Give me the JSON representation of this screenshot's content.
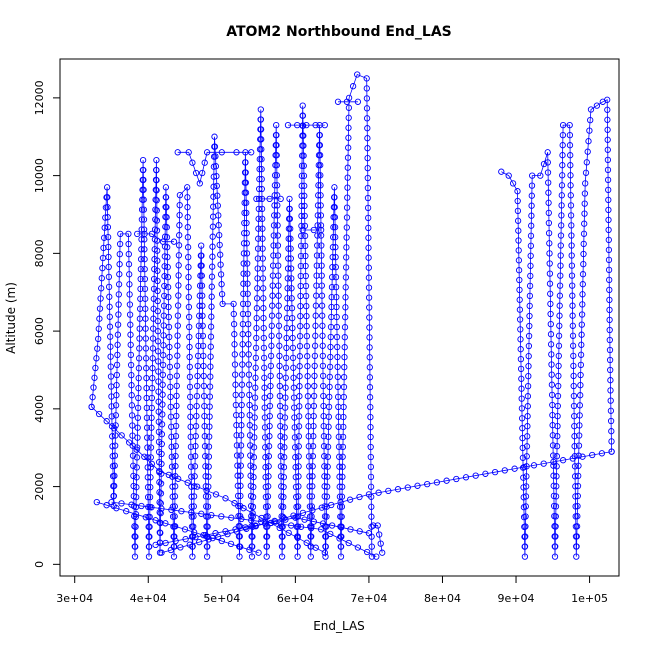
{
  "chart_data": {
    "type": "line",
    "title": "ATOM2 Northbound End_LAS",
    "xlabel": "End_LAS",
    "ylabel": "Altitude (m)",
    "xlim": [
      28000,
      104000
    ],
    "ylim": [
      -300,
      13000
    ],
    "x_ticks": [
      {
        "value": 30000,
        "label": "3e+04"
      },
      {
        "value": 40000,
        "label": "4e+04"
      },
      {
        "value": 50000,
        "label": "5e+04"
      },
      {
        "value": 60000,
        "label": "6e+04"
      },
      {
        "value": 70000,
        "label": "7e+04"
      },
      {
        "value": 80000,
        "label": "8e+04"
      },
      {
        "value": 90000,
        "label": "9e+04"
      },
      {
        "value": 100000,
        "label": "1e+05"
      }
    ],
    "y_ticks": [
      {
        "value": 0,
        "label": "0"
      },
      {
        "value": 2000,
        "label": "2000"
      },
      {
        "value": 4000,
        "label": "4000"
      },
      {
        "value": 6000,
        "label": "6000"
      },
      {
        "value": 8000,
        "label": "8000"
      },
      {
        "value": 10000,
        "label": "10000"
      },
      {
        "value": 12000,
        "label": "12000"
      }
    ],
    "grid": false,
    "series_color": "#0000ff",
    "marker": "open-circle",
    "segments": [
      [
        [
          32300,
          4050
        ],
        [
          33200,
          5800
        ],
        [
          34400,
          9700
        ],
        [
          35300,
          1500
        ],
        [
          36200,
          8500
        ],
        [
          37300,
          8500
        ],
        [
          38200,
          200
        ],
        [
          39300,
          10400
        ],
        [
          40100,
          200
        ],
        [
          41100,
          10400
        ],
        [
          41600,
          300
        ],
        [
          42400,
          9700
        ],
        [
          43500,
          200
        ],
        [
          44300,
          9500
        ],
        [
          45300,
          9700
        ],
        [
          46000,
          200
        ],
        [
          47200,
          8200
        ],
        [
          48000,
          200
        ],
        [
          49000,
          11000
        ],
        [
          50100,
          6700
        ],
        [
          51600,
          6700
        ],
        [
          52400,
          200
        ],
        [
          53200,
          10600
        ],
        [
          54100,
          200
        ],
        [
          55300,
          11700
        ],
        [
          56100,
          200
        ],
        [
          57400,
          11300
        ],
        [
          58200,
          200
        ],
        [
          59200,
          9400
        ],
        [
          60300,
          200
        ],
        [
          61000,
          11800
        ],
        [
          62100,
          200
        ],
        [
          63300,
          11300
        ],
        [
          64100,
          200
        ],
        [
          65300,
          9700
        ],
        [
          66200,
          200
        ],
        [
          67300,
          12000
        ],
        [
          68400,
          12600
        ],
        [
          69700,
          12500
        ],
        [
          70400,
          200
        ]
      ],
      [
        [
          44000,
          10600
        ],
        [
          45500,
          10600
        ],
        [
          47000,
          9800
        ],
        [
          48000,
          10600
        ],
        [
          50000,
          10600
        ],
        [
          52000,
          10600
        ],
        [
          54000,
          10600
        ]
      ],
      [
        [
          38500,
          8500
        ],
        [
          39500,
          8500
        ],
        [
          40500,
          8500
        ],
        [
          42000,
          8300
        ],
        [
          43500,
          8300
        ]
      ],
      [
        [
          54700,
          9400
        ],
        [
          56500,
          9400
        ],
        [
          58000,
          9400
        ]
      ],
      [
        [
          59000,
          11300
        ],
        [
          61500,
          11300
        ],
        [
          64000,
          11300
        ]
      ],
      [
        [
          61000,
          8600
        ],
        [
          62500,
          8600
        ],
        [
          63500,
          8600
        ]
      ],
      [
        [
          65800,
          11900
        ],
        [
          67000,
          11900
        ],
        [
          68500,
          11900
        ]
      ],
      [
        [
          70600,
          1000
        ],
        [
          71200,
          1000
        ],
        [
          71800,
          300
        ]
      ],
      [
        [
          32300,
          4050
        ],
        [
          41500,
          2400
        ],
        [
          50500,
          1700
        ],
        [
          64000,
          300
        ]
      ],
      [
        [
          33000,
          1600
        ],
        [
          45000,
          900
        ],
        [
          55000,
          300
        ]
      ],
      [
        [
          41000,
          500
        ],
        [
          60000,
          1200
        ],
        [
          70000,
          800
        ]
      ],
      [
        [
          41800,
          300
        ],
        [
          70000,
          1800
        ],
        [
          103000,
          2900
        ]
      ],
      [
        [
          35000,
          1600
        ],
        [
          63500,
          900
        ],
        [
          71000,
          200
        ]
      ],
      [
        [
          88000,
          10100
        ],
        [
          89000,
          10000
        ],
        [
          90200,
          9600
        ],
        [
          91200,
          200
        ],
        [
          92200,
          10000
        ],
        [
          93300,
          10000
        ],
        [
          94300,
          10600
        ],
        [
          95300,
          200
        ],
        [
          96400,
          11300
        ],
        [
          97300,
          11300
        ],
        [
          98200,
          200
        ],
        [
          99400,
          9800
        ],
        [
          100200,
          11700
        ],
        [
          101000,
          11800
        ],
        [
          101800,
          11900
        ],
        [
          102400,
          11950
        ],
        [
          102800,
          5000
        ],
        [
          103000,
          2900
        ]
      ]
    ]
  }
}
